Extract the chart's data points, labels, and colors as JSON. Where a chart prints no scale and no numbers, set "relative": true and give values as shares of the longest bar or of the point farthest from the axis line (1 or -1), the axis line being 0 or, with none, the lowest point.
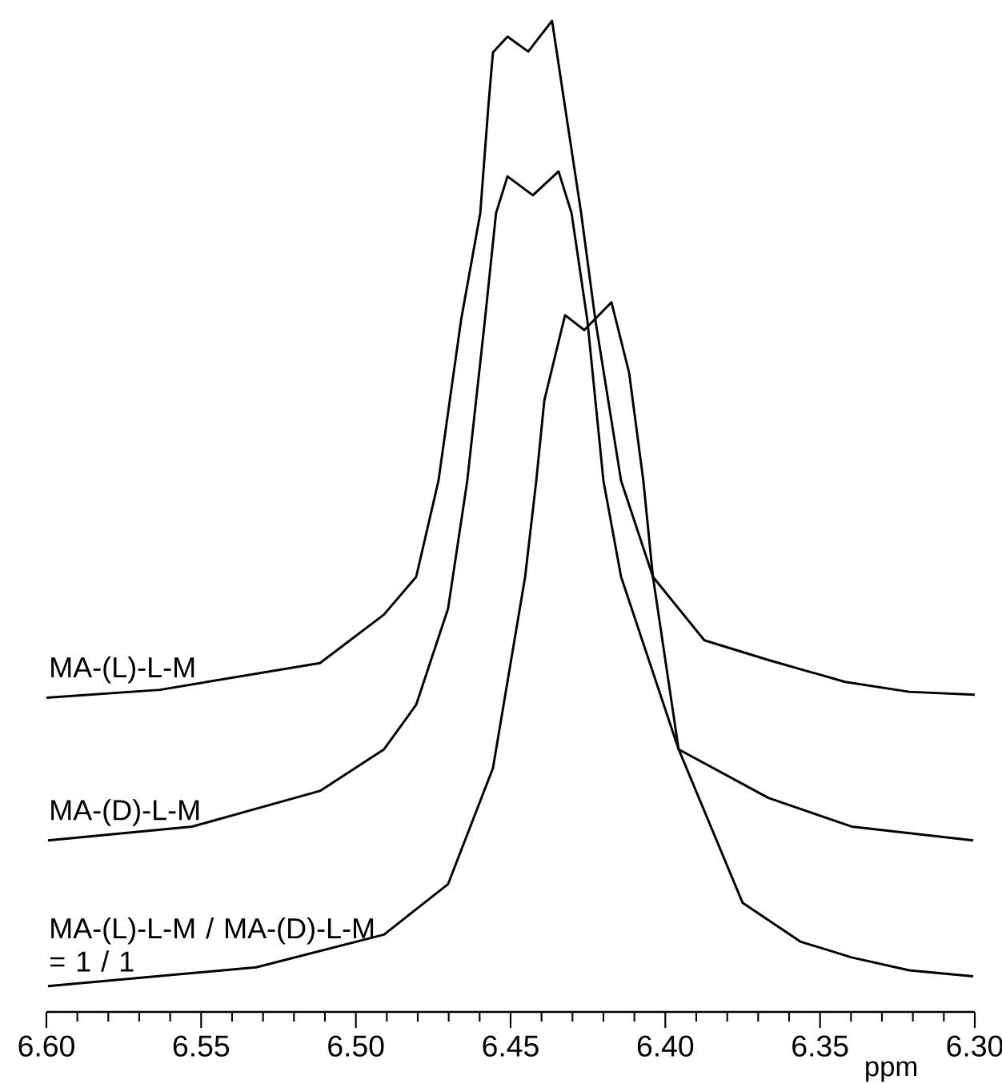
{
  "chart_data": {
    "type": "line",
    "relative": true,
    "xlabel": "ppm",
    "xlim": [
      6.6,
      6.3
    ],
    "xticks": [
      {
        "value": 6.6,
        "label": "6.60"
      },
      6.55,
      {
        "value": 6.5,
        "label": "6.50"
      },
      6.45,
      {
        "value": 6.4,
        "label": "6.40"
      },
      6.35,
      {
        "value": 6.3,
        "label": "6.30"
      }
    ],
    "series": [
      {
        "name": "MA-(L)-L-M",
        "color": "#000000",
        "x": [
          6.6,
          6.5633,
          6.5116,
          6.4909,
          6.4805,
          6.4733,
          6.466,
          6.4598,
          6.4572,
          6.4557,
          6.451,
          6.4443,
          6.4366,
          6.4324,
          6.4272,
          6.4226,
          6.4143,
          6.404,
          6.3874,
          6.3666,
          6.3419,
          6.3212,
          6.3
        ],
        "values": [
          0.317,
          0.325,
          0.352,
          0.401,
          0.439,
          0.536,
          0.698,
          0.806,
          0.913,
          0.968,
          0.984,
          0.969,
          1.0,
          0.913,
          0.806,
          0.698,
          0.536,
          0.439,
          0.375,
          0.355,
          0.333,
          0.323,
          0.32
        ]
      },
      {
        "name": "MA-(D)-L-M",
        "color": "#000000",
        "x": [
          6.5995,
          6.5529,
          6.5116,
          6.4909,
          6.4805,
          6.4702,
          6.464,
          6.4583,
          6.4547,
          6.451,
          6.4428,
          6.4345,
          6.4303,
          6.4252,
          6.42,
          6.4143,
          6.3957,
          6.3667,
          6.3398,
          6.3005
        ],
        "values": [
          0.173,
          0.187,
          0.223,
          0.265,
          0.31,
          0.407,
          0.536,
          0.698,
          0.806,
          0.843,
          0.824,
          0.848,
          0.806,
          0.698,
          0.536,
          0.439,
          0.265,
          0.216,
          0.187,
          0.173
        ]
      },
      {
        "name": "MA-(L)-L-M / MA-(D)-L-M = 1 / 1",
        "color": "#000000",
        "x": [
          6.5995,
          6.5322,
          6.4909,
          6.4702,
          6.4557,
          6.4453,
          6.4417,
          6.4391,
          6.4324,
          6.4262,
          6.4174,
          6.4117,
          6.4071,
          6.404,
          6.3957,
          6.375,
          6.3564,
          6.3398,
          6.3212,
          6.3005
        ],
        "values": [
          0.026,
          0.045,
          0.078,
          0.129,
          0.246,
          0.439,
          0.536,
          0.617,
          0.703,
          0.688,
          0.716,
          0.645,
          0.536,
          0.439,
          0.265,
          0.11,
          0.071,
          0.055,
          0.042,
          0.036
        ]
      }
    ]
  }
}
